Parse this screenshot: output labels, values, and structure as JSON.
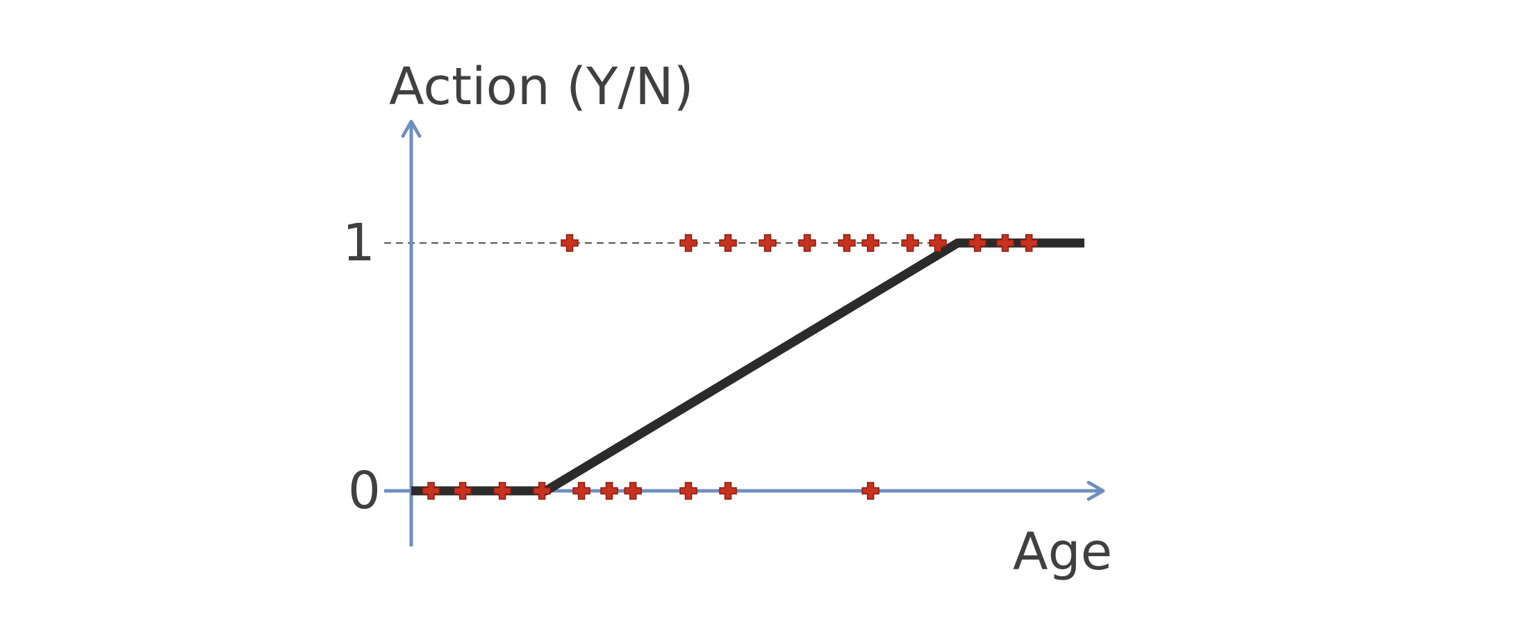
{
  "chart_data": {
    "type": "scatter",
    "xlabel": "Age",
    "ylabel": "Action (Y/N)",
    "y_ticks": [
      "0",
      "1"
    ],
    "ylim": [
      -0.2,
      1.5
    ],
    "xlim": [
      0,
      17
    ],
    "reference_line": {
      "y": 1,
      "style": "dashed"
    },
    "points": [
      {
        "x": 0.5,
        "y": 0
      },
      {
        "x": 1.3,
        "y": 0
      },
      {
        "x": 2.3,
        "y": 0
      },
      {
        "x": 3.3,
        "y": 0
      },
      {
        "x": 4.3,
        "y": 0
      },
      {
        "x": 5.0,
        "y": 0
      },
      {
        "x": 5.6,
        "y": 0
      },
      {
        "x": 7.0,
        "y": 0
      },
      {
        "x": 8.0,
        "y": 0
      },
      {
        "x": 11.6,
        "y": 0
      },
      {
        "x": 4.0,
        "y": 1
      },
      {
        "x": 7.0,
        "y": 1
      },
      {
        "x": 8.0,
        "y": 1
      },
      {
        "x": 9.0,
        "y": 1
      },
      {
        "x": 10.0,
        "y": 1
      },
      {
        "x": 11.0,
        "y": 1
      },
      {
        "x": 11.6,
        "y": 1
      },
      {
        "x": 12.6,
        "y": 1
      },
      {
        "x": 13.3,
        "y": 1
      },
      {
        "x": 14.3,
        "y": 1
      },
      {
        "x": 15.0,
        "y": 1
      },
      {
        "x": 15.6,
        "y": 1
      }
    ],
    "fit_line": [
      {
        "x": 0,
        "y": 0
      },
      {
        "x": 3.4,
        "y": 0
      },
      {
        "x": 13.8,
        "y": 1
      },
      {
        "x": 17,
        "y": 1
      }
    ],
    "colors": {
      "axis": "#6f8fbe",
      "points": "#c8321e",
      "fit_line": "#2b2b2b",
      "reference_line": "#555555",
      "text": "#404040"
    }
  }
}
